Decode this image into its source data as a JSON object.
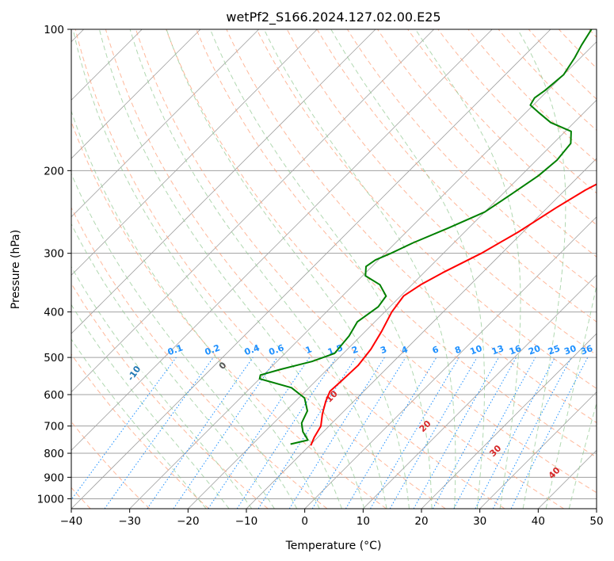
{
  "chart_data": {
    "type": "line",
    "title": "wetPf2_S166.2024.127.02.00.E25",
    "xlabel": "Temperature (°C)",
    "ylabel": "Pressure (hPa)",
    "xlim": [
      -40,
      50
    ],
    "ylim": [
      1050,
      100
    ],
    "yscale": "log",
    "skew": "skew-T log-p",
    "grid": true,
    "x_ticks": [
      -40,
      -30,
      -20,
      -10,
      0,
      10,
      20,
      30,
      40,
      50
    ],
    "y_ticks": [
      100,
      200,
      300,
      400,
      500,
      600,
      700,
      800,
      900,
      1000
    ],
    "series": [
      {
        "color": "#ff0000",
        "style": "solid",
        "points": [
          {
            "p": 770,
            "t": -9.8
          },
          {
            "p": 740,
            "t": -10.6
          },
          {
            "p": 700,
            "t": -11.4
          },
          {
            "p": 660,
            "t": -13.2
          },
          {
            "p": 620,
            "t": -14.8
          },
          {
            "p": 590,
            "t": -15.8
          },
          {
            "p": 560,
            "t": -15.6
          },
          {
            "p": 520,
            "t": -15.4
          },
          {
            "p": 480,
            "t": -16.0
          },
          {
            "p": 440,
            "t": -17.2
          },
          {
            "p": 400,
            "t": -18.8
          },
          {
            "p": 370,
            "t": -19.5
          },
          {
            "p": 350,
            "t": -18.5
          },
          {
            "p": 330,
            "t": -16.8
          },
          {
            "p": 300,
            "t": -13.5
          },
          {
            "p": 270,
            "t": -10.8
          },
          {
            "p": 240,
            "t": -8.5
          },
          {
            "p": 220,
            "t": -6.5
          },
          {
            "p": 200,
            "t": -3.5
          },
          {
            "p": 185,
            "t": -1.5
          },
          {
            "p": 170,
            "t": 2.5
          },
          {
            "p": 160,
            "t": 7.0
          },
          {
            "p": 150,
            "t": 14.5
          },
          {
            "p": 140,
            "t": 17.0
          },
          {
            "p": 130,
            "t": 15.0
          },
          {
            "p": 120,
            "t": 12.8
          },
          {
            "p": 110,
            "t": 13.5
          },
          {
            "p": 100,
            "t": 14.0
          }
        ]
      },
      {
        "color": "#008000",
        "style": "solid",
        "points": [
          {
            "p": 765,
            "t": -13.5
          },
          {
            "p": 750,
            "t": -11.2
          },
          {
            "p": 720,
            "t": -13.5
          },
          {
            "p": 690,
            "t": -15.2
          },
          {
            "p": 650,
            "t": -16.3
          },
          {
            "p": 610,
            "t": -19.0
          },
          {
            "p": 580,
            "t": -23.0
          },
          {
            "p": 555,
            "t": -30.0
          },
          {
            "p": 545,
            "t": -30.5
          },
          {
            "p": 530,
            "t": -28.0
          },
          {
            "p": 510,
            "t": -24.0
          },
          {
            "p": 490,
            "t": -21.5
          },
          {
            "p": 450,
            "t": -22.0
          },
          {
            "p": 420,
            "t": -23.0
          },
          {
            "p": 390,
            "t": -22.0
          },
          {
            "p": 370,
            "t": -22.5
          },
          {
            "p": 350,
            "t": -25.5
          },
          {
            "p": 335,
            "t": -29.5
          },
          {
            "p": 320,
            "t": -31.0
          },
          {
            "p": 310,
            "t": -30.5
          },
          {
            "p": 300,
            "t": -29.0
          },
          {
            "p": 285,
            "t": -27.0
          },
          {
            "p": 265,
            "t": -23.5
          },
          {
            "p": 245,
            "t": -20.0
          },
          {
            "p": 225,
            "t": -18.5
          },
          {
            "p": 205,
            "t": -17.0
          },
          {
            "p": 190,
            "t": -16.5
          },
          {
            "p": 175,
            "t": -17.0
          },
          {
            "p": 165,
            "t": -19.0
          },
          {
            "p": 158,
            "t": -24.0
          },
          {
            "p": 150,
            "t": -28.0
          },
          {
            "p": 145,
            "t": -30.5
          },
          {
            "p": 140,
            "t": -31.0
          },
          {
            "p": 135,
            "t": -30.5
          },
          {
            "p": 125,
            "t": -30.0
          },
          {
            "p": 115,
            "t": -31.0
          },
          {
            "p": 108,
            "t": -32.0
          },
          {
            "p": 100,
            "t": -33.0
          }
        ]
      }
    ],
    "dry_adiabats": [
      -100,
      -90,
      -80,
      -70,
      -60,
      -50,
      -40,
      -30,
      -20,
      -10
    ],
    "moist_adiabats": [
      0,
      10,
      20,
      30,
      40
    ],
    "mixing_ratios": [
      "0.1",
      "0.2",
      "0.4",
      "0.6",
      "1",
      "1.5",
      "2",
      "3",
      "4",
      "6",
      "8",
      "10",
      "13",
      "16",
      "20",
      "25",
      "30",
      "36"
    ],
    "colors": {
      "temperature": "#ff0000",
      "dewpoint": "#008000",
      "isotherm": "#a0a0a0",
      "dry_adiabat": "#ffa07a",
      "moist_adiabat": "#90c890",
      "mixing_ratio": "#1e90ff",
      "dry_label": "#1f77b4",
      "moist_label": "#d62728"
    }
  }
}
